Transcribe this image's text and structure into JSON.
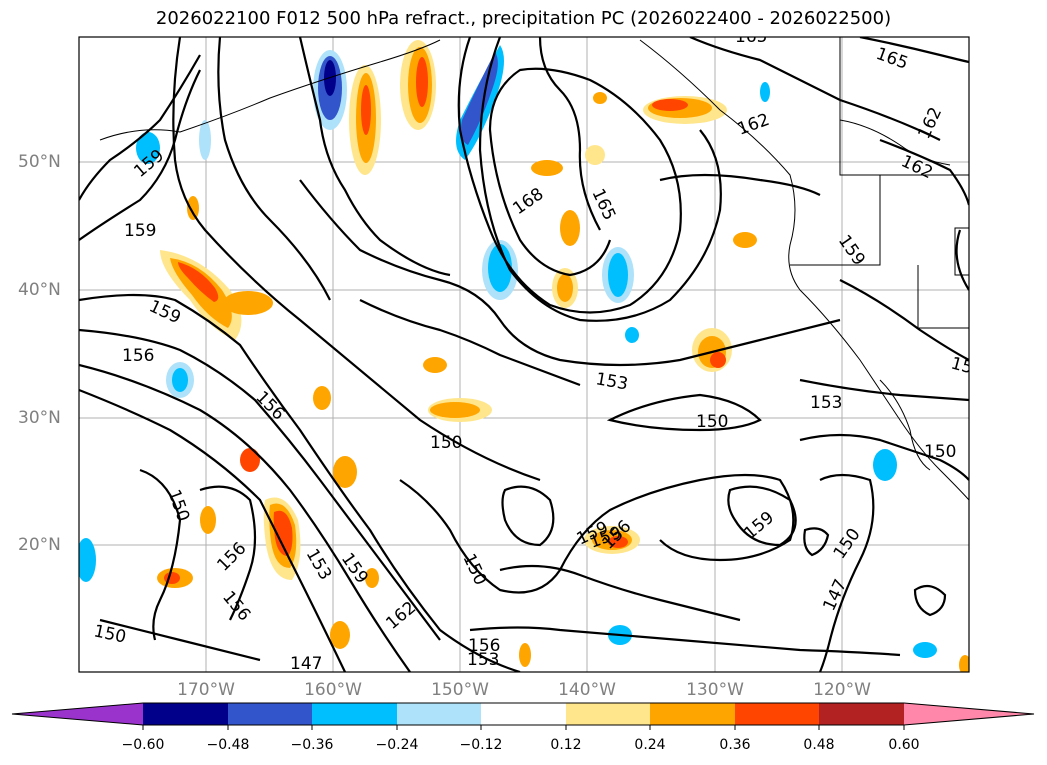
{
  "title": "2026022100 F012 500 hPa refract., precipitation PC (2026022400 - 2026022500)",
  "map": {
    "lat_labels": [
      "50°N",
      "40°N",
      "30°N",
      "20°N"
    ],
    "lon_labels": [
      "170°W",
      "160°W",
      "150°W",
      "140°W",
      "130°W",
      "120°W"
    ],
    "contour_labels": [
      "165",
      "165",
      "162",
      "162",
      "162",
      "159",
      "159",
      "159",
      "159",
      "168",
      "165",
      "159",
      "156",
      "156",
      "153",
      "153",
      "150",
      "150",
      "150",
      "150",
      "150",
      "156",
      "153",
      "159",
      "162",
      "147",
      "156",
      "153",
      "156",
      "159",
      "156",
      "159",
      "150",
      "147",
      "15",
      "150"
    ]
  },
  "colorbar": {
    "colors": [
      "#9933cc",
      "#00008b",
      "#3355cc",
      "#00bfff",
      "#aee2fa",
      "#ffffff",
      "#ffe68c",
      "#ffa500",
      "#ff4500",
      "#b22222",
      "#ff88aa"
    ],
    "tick_labels": [
      "−0.60",
      "−0.48",
      "−0.36",
      "−0.24",
      "−0.12",
      "0.12",
      "0.24",
      "0.36",
      "0.48",
      "0.60"
    ]
  }
}
